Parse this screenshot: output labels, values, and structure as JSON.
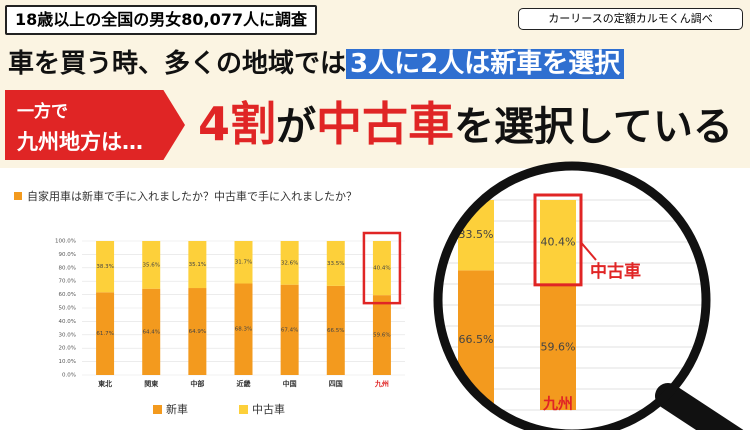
{
  "header": {
    "survey": "18歳以上の全国の男女80,077人に調査",
    "source": "カーリースの定額カルモくん調べ",
    "headline_lead": "車を買う時、多くの地域では",
    "headline_highlight": "3人に2人は新車を選択",
    "callout": [
      "一方で",
      "九州地方は…"
    ],
    "conclusion": [
      "4割",
      "が",
      "中古車",
      "を選択している"
    ]
  },
  "chart_data": {
    "type": "bar",
    "stacked": true,
    "grid": true,
    "subtitle": "自家用車は新車で手に入れましたか？中古車で手に入れましたか？",
    "categories": [
      "東北",
      "関東",
      "中部",
      "近畿",
      "中国",
      "四国",
      "九州"
    ],
    "series": [
      {
        "name": "新車",
        "color": "#f39a1e",
        "values": [
          61.7,
          64.4,
          64.9,
          68.3,
          67.4,
          66.5,
          59.6
        ],
        "value_labels": [
          "61.7%",
          "64.4%",
          "64.9%",
          "68.3%",
          "67.4%",
          "66.5%",
          "59.6%"
        ]
      },
      {
        "name": "中古車",
        "color": "#fdd03a",
        "values": [
          38.3,
          35.6,
          35.1,
          31.7,
          32.6,
          33.5,
          40.4
        ],
        "value_labels": [
          "38.3%",
          "35.6%",
          "35.1%",
          "31.7%",
          "32.6%",
          "33.5%",
          "40.4%"
        ]
      }
    ],
    "ylim": [
      0,
      100
    ],
    "yticks": [
      {
        "value": 0,
        "label": "0.0%"
      },
      {
        "value": 10,
        "label": "10.0%"
      },
      {
        "value": 20,
        "label": "20.0%"
      },
      {
        "value": 30,
        "label": "30.0%"
      },
      {
        "value": 40,
        "label": "40.0%"
      },
      {
        "value": 50,
        "label": "50.0%"
      },
      {
        "value": 60,
        "label": "60.0%"
      },
      {
        "value": 70,
        "label": "70.0%"
      },
      {
        "value": 80,
        "label": "80.0%"
      },
      {
        "value": 90,
        "label": "90.0%"
      },
      {
        "value": 100,
        "label": "100.0%"
      }
    ]
  }
}
